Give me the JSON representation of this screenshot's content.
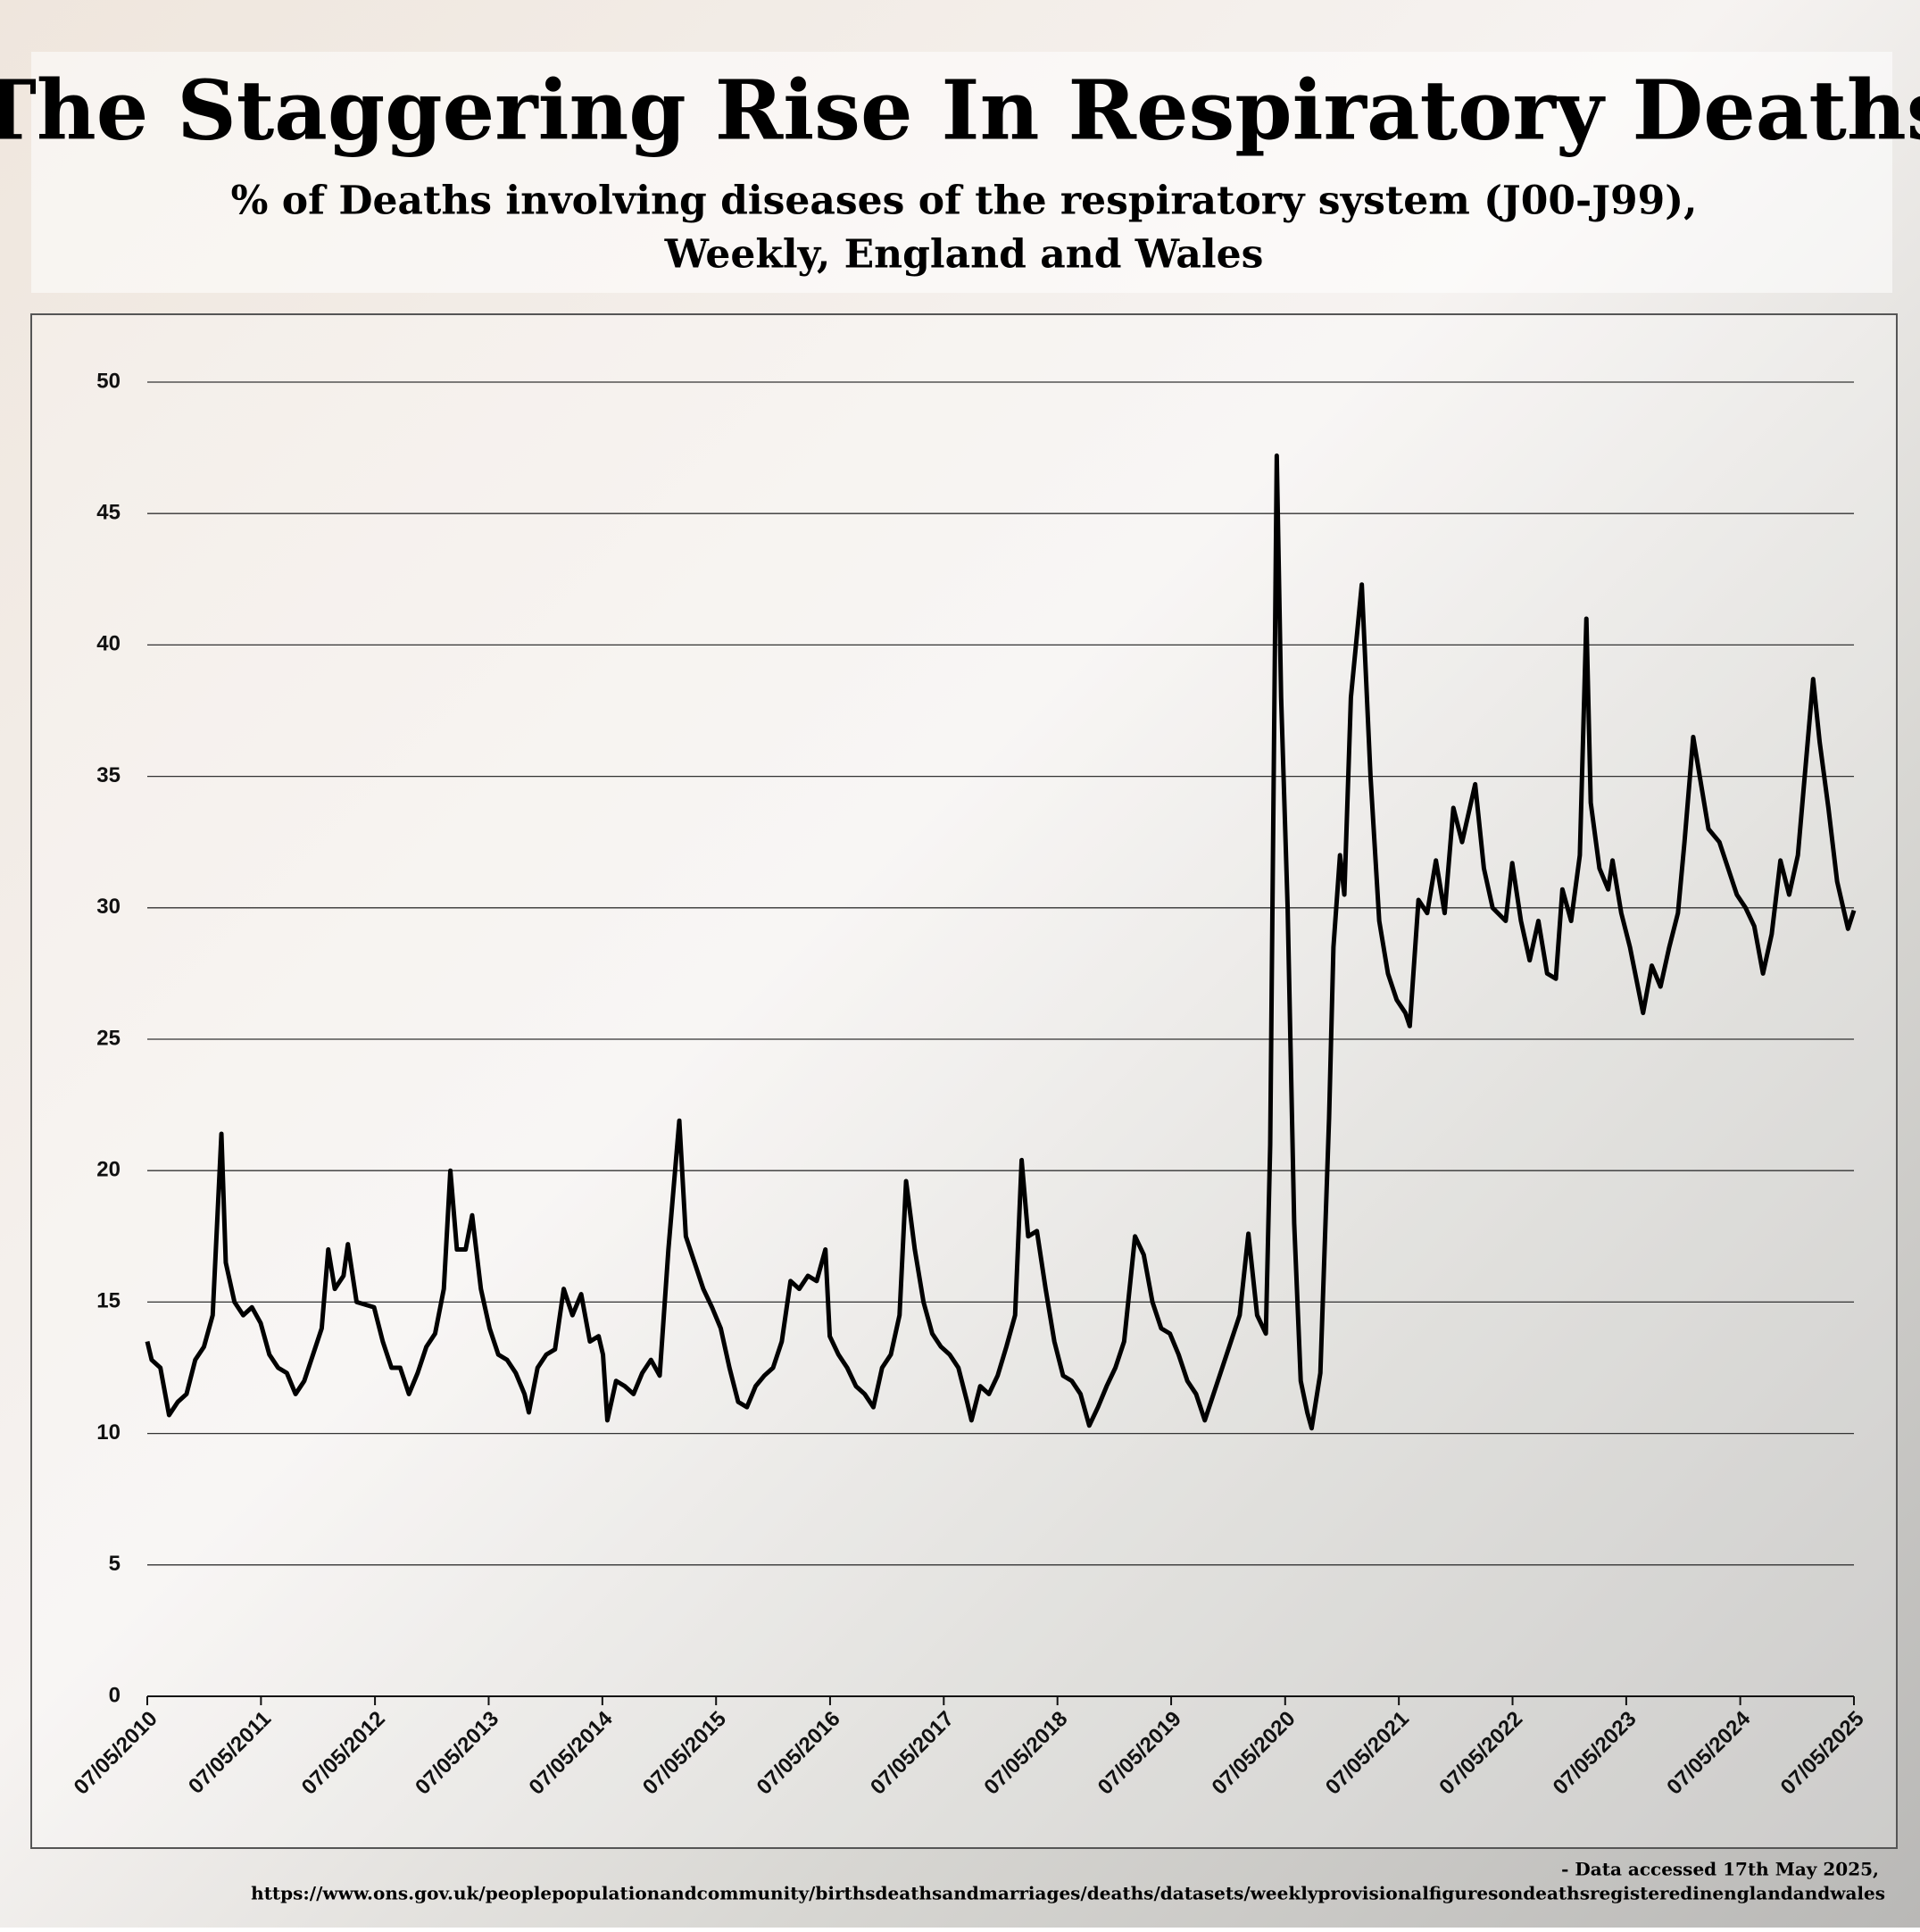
{
  "chart_data": {
    "type": "line",
    "title": "The Staggering Rise In Respiratory Deaths",
    "subtitle": [
      "% of Deaths involving diseases of the respiratory system (J00-J99),",
      "Weekly, England and Wales"
    ],
    "footnote": [
      "- Data accessed 17th May 2025,",
      "https://www.ons.gov.uk/peoplepopulationandcommunity/birthsdeathsandmarriages/deaths/datasets/weeklyprovisionalfiguresondeathsregisteredinenglandandwales"
    ],
    "xlim": [
      "07/05/2010",
      "07/05/2025"
    ],
    "xticks": [
      "07/05/2010",
      "07/05/2011",
      "07/05/2012",
      "07/05/2013",
      "07/05/2014",
      "07/05/2015",
      "07/05/2016",
      "07/05/2017",
      "07/05/2018",
      "07/05/2019",
      "07/05/2020",
      "07/05/2021",
      "07/05/2022",
      "07/05/2023",
      "07/05/2024",
      "07/05/2025"
    ],
    "ylim": [
      0,
      50
    ],
    "yticks": [
      0,
      5,
      10,
      15,
      20,
      25,
      30,
      35,
      40,
      45,
      50
    ],
    "grid": true,
    "series": [
      {
        "color": "#000000",
        "x": [
          "07/05/2010",
          "21/05/2010",
          "18/06/2010",
          "16/07/2010",
          "13/08/2010",
          "10/09/2010",
          "08/10/2010",
          "05/11/2010",
          "03/12/2010",
          "31/12/2010",
          "14/01/2011",
          "11/02/2011",
          "11/03/2011",
          "08/04/2011",
          "06/05/2011",
          "03/06/2011",
          "01/07/2011",
          "29/07/2011",
          "26/08/2011",
          "23/09/2011",
          "21/10/2011",
          "18/11/2011",
          "09/12/2011",
          "30/12/2011",
          "27/01/2012",
          "10/02/2012",
          "09/03/2012",
          "04/05/2012",
          "01/06/2012",
          "29/06/2012",
          "27/07/2012",
          "24/08/2012",
          "21/09/2012",
          "19/10/2012",
          "16/11/2012",
          "14/12/2012",
          "04/01/2013",
          "25/01/2013",
          "22/02/2013",
          "15/03/2013",
          "12/04/2013",
          "10/05/2013",
          "07/06/2013",
          "05/07/2013",
          "02/08/2013",
          "30/08/2013",
          "13/09/2013",
          "11/10/2013",
          "08/11/2013",
          "06/12/2013",
          "03/01/2014",
          "31/01/2014",
          "28/02/2014",
          "28/03/2014",
          "25/04/2014",
          "09/05/2014",
          "23/05/2014",
          "20/06/2014",
          "18/07/2014",
          "15/08/2014",
          "12/09/2014",
          "10/10/2014",
          "07/11/2014",
          "05/12/2014",
          "09/01/2015",
          "30/01/2015",
          "27/02/2015",
          "27/03/2015",
          "24/04/2015",
          "22/05/2015",
          "19/06/2015",
          "17/07/2015",
          "14/08/2015",
          "11/09/2015",
          "09/10/2015",
          "06/11/2015",
          "04/12/2015",
          "01/01/2016",
          "29/01/2016",
          "26/02/2016",
          "25/03/2016",
          "22/04/2016",
          "06/05/2016",
          "03/06/2016",
          "01/07/2016",
          "29/07/2016",
          "26/08/2016",
          "23/09/2016",
          "21/10/2016",
          "18/11/2016",
          "16/12/2016",
          "06/01/2017",
          "03/02/2017",
          "03/03/2017",
          "31/03/2017",
          "28/04/2017",
          "26/05/2017",
          "23/06/2017",
          "21/07/2017",
          "04/08/2017",
          "01/09/2017",
          "29/09/2017",
          "27/10/2017",
          "24/11/2017",
          "22/12/2017",
          "12/01/2018",
          "02/02/2018",
          "02/03/2018",
          "30/03/2018",
          "27/04/2018",
          "25/05/2018",
          "22/06/2018",
          "20/07/2018",
          "17/08/2018",
          "14/09/2018",
          "12/10/2018",
          "09/11/2018",
          "07/12/2018",
          "11/01/2019",
          "08/02/2019",
          "08/03/2019",
          "05/04/2019",
          "03/05/2019",
          "31/05/2019",
          "28/06/2019",
          "26/07/2019",
          "23/08/2019",
          "20/09/2019",
          "18/10/2019",
          "15/11/2019",
          "13/12/2019",
          "10/01/2020",
          "07/02/2020",
          "06/03/2020",
          "20/03/2020",
          "10/04/2020",
          "24/04/2020",
          "15/05/2020",
          "05/06/2020",
          "26/06/2020",
          "17/07/2020",
          "31/07/2020",
          "28/08/2020",
          "25/09/2020",
          "09/10/2020",
          "30/10/2020",
          "13/11/2020",
          "04/12/2020",
          "08/01/2021",
          "05/02/2021",
          "05/03/2021",
          "02/04/2021",
          "30/04/2021",
          "28/05/2021",
          "11/06/2021",
          "09/07/2021",
          "06/08/2021",
          "03/09/2021",
          "01/10/2021",
          "29/10/2021",
          "26/11/2021",
          "07/01/2022",
          "04/02/2022",
          "04/03/2022",
          "15/04/2022",
          "06/05/2022",
          "03/06/2022",
          "01/07/2022",
          "29/07/2022",
          "26/08/2022",
          "23/09/2022",
          "14/10/2022",
          "11/11/2022",
          "09/12/2022",
          "30/12/2022",
          "13/01/2023",
          "10/02/2023",
          "10/03/2023",
          "24/03/2023",
          "21/04/2023",
          "19/05/2023",
          "30/06/2023",
          "28/07/2023",
          "25/08/2023",
          "22/09/2023",
          "20/10/2023",
          "10/11/2023",
          "08/12/2023",
          "29/12/2023",
          "26/01/2024",
          "01/03/2024",
          "29/03/2024",
          "26/04/2024",
          "24/05/2024",
          "21/06/2024",
          "19/07/2024",
          "16/08/2024",
          "13/09/2024",
          "11/10/2024",
          "08/11/2024",
          "27/12/2024",
          "17/01/2025",
          "14/02/2025",
          "14/03/2025",
          "18/04/2025",
          "07/05/2025"
        ],
        "values": [
          13.5,
          12.8,
          12.5,
          10.7,
          11.2,
          11.5,
          12.8,
          13.3,
          14.5,
          21.4,
          16.5,
          15,
          14.5,
          14.8,
          14.2,
          13,
          12.5,
          12.3,
          11.5,
          12,
          13,
          14,
          17,
          15.5,
          16,
          17.2,
          15,
          14.8,
          13.5,
          12.5,
          12.5,
          11.5,
          12.3,
          13.3,
          13.8,
          15.5,
          20,
          17,
          17,
          18.3,
          15.5,
          14,
          13,
          12.8,
          12.3,
          11.5,
          10.8,
          12.5,
          13,
          13.2,
          15.5,
          14.5,
          15.3,
          13.5,
          13.7,
          13,
          10.5,
          12,
          11.8,
          11.5,
          12.3,
          12.8,
          12.2,
          17,
          21.9,
          17.5,
          16.5,
          15.5,
          14.8,
          14,
          12.5,
          11.2,
          11,
          11.8,
          12.2,
          12.5,
          13.5,
          15.8,
          15.5,
          16,
          15.8,
          17,
          13.7,
          13,
          12.5,
          11.8,
          11.5,
          11,
          12.5,
          13,
          14.5,
          19.6,
          17,
          15,
          13.8,
          13.3,
          13,
          12.5,
          11.2,
          10.5,
          11.8,
          11.5,
          12.2,
          13.3,
          14.5,
          20.4,
          17.5,
          17.7,
          15.5,
          13.5,
          12.2,
          12,
          11.5,
          10.3,
          11,
          11.8,
          12.5,
          13.5,
          17.5,
          16.8,
          15,
          14,
          13.8,
          13,
          12,
          11.5,
          10.5,
          11.5,
          12.5,
          13.5,
          14.5,
          17.6,
          14.5,
          13.8,
          21,
          47.2,
          38,
          30,
          18,
          12,
          10.8,
          10.2,
          12.3,
          22,
          28.5,
          32,
          30.5,
          38,
          42.3,
          35,
          29.5,
          27.5,
          26.5,
          26,
          25.5,
          30.3,
          29.8,
          31.8,
          29.8,
          33.8,
          32.5,
          34.7,
          31.5,
          30,
          29.5,
          31.7,
          29.5,
          28,
          29.5,
          27.5,
          27.3,
          30.7,
          29.5,
          32,
          41,
          34,
          31.5,
          30.7,
          31.8,
          29.8,
          28.5,
          26,
          27.8,
          27,
          28.5,
          29.8,
          32.5,
          36.5,
          35,
          33,
          32.5,
          31.5,
          30.5,
          30,
          29.3,
          27.5,
          29,
          31.8,
          30.5,
          32,
          38.7,
          36.3,
          33.8,
          31,
          29.2,
          29.9
        ]
      }
    ]
  }
}
